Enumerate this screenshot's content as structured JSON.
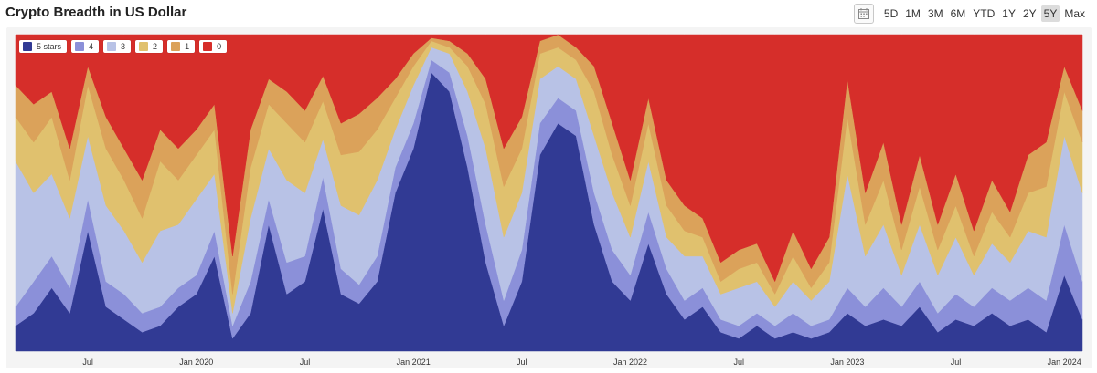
{
  "header": {
    "title": "Crypto Breadth in US Dollar",
    "calendar_icon": "calendar-icon",
    "ranges": [
      "5D",
      "1M",
      "3M",
      "6M",
      "YTD",
      "1Y",
      "2Y",
      "5Y",
      "Max"
    ],
    "active_range": "5Y"
  },
  "chart_data": {
    "type": "area",
    "stacked": true,
    "normalized": true,
    "ylim": [
      0,
      100
    ],
    "grid": false,
    "legend_position": "top-left",
    "x_tick_labels": [
      "Jul",
      "Jan 2020",
      "Jul",
      "Jan 2021",
      "Jul",
      "Jan 2022",
      "Jul",
      "Jan 2023",
      "Jul",
      "Jan 2024"
    ],
    "x_tick_dates": [
      "2019-07",
      "2020-01",
      "2020-07",
      "2021-01",
      "2021-07",
      "2022-01",
      "2022-07",
      "2023-01",
      "2023-07",
      "2024-01"
    ],
    "x": [
      "2019-03",
      "2019-04",
      "2019-05",
      "2019-06",
      "2019-07",
      "2019-08",
      "2019-09",
      "2019-10",
      "2019-11",
      "2019-12",
      "2020-01",
      "2020-02",
      "2020-03",
      "2020-04",
      "2020-05",
      "2020-06",
      "2020-07",
      "2020-08",
      "2020-09",
      "2020-10",
      "2020-11",
      "2020-12",
      "2021-01",
      "2021-02",
      "2021-03",
      "2021-04",
      "2021-05",
      "2021-06",
      "2021-07",
      "2021-08",
      "2021-09",
      "2021-10",
      "2021-11",
      "2021-12",
      "2022-01",
      "2022-02",
      "2022-03",
      "2022-04",
      "2022-05",
      "2022-06",
      "2022-07",
      "2022-08",
      "2022-09",
      "2022-10",
      "2022-11",
      "2022-12",
      "2023-01",
      "2023-02",
      "2023-03",
      "2023-04",
      "2023-05",
      "2023-06",
      "2023-07",
      "2023-08",
      "2023-09",
      "2023-10",
      "2023-11",
      "2023-12",
      "2024-01",
      "2024-02"
    ],
    "series": [
      {
        "name": "5 stars",
        "color": "#313a94",
        "values": [
          8,
          12,
          20,
          12,
          38,
          14,
          10,
          6,
          8,
          14,
          18,
          30,
          4,
          12,
          40,
          18,
          22,
          45,
          18,
          15,
          22,
          50,
          64,
          88,
          82,
          58,
          28,
          8,
          22,
          62,
          72,
          68,
          40,
          22,
          16,
          34,
          18,
          10,
          14,
          6,
          4,
          8,
          4,
          6,
          4,
          6,
          12,
          8,
          10,
          8,
          14,
          6,
          10,
          8,
          12,
          8,
          10,
          6,
          24,
          10
        ]
      },
      {
        "name": "4",
        "color": "#8b90d9",
        "values": [
          6,
          10,
          10,
          8,
          10,
          8,
          8,
          6,
          6,
          6,
          6,
          8,
          4,
          10,
          8,
          10,
          8,
          10,
          8,
          6,
          8,
          8,
          8,
          4,
          6,
          10,
          12,
          8,
          10,
          10,
          8,
          8,
          10,
          10,
          8,
          10,
          8,
          6,
          6,
          4,
          4,
          4,
          4,
          6,
          4,
          4,
          8,
          6,
          10,
          6,
          8,
          6,
          8,
          6,
          8,
          8,
          10,
          10,
          16,
          12
        ]
      },
      {
        "name": "3",
        "color": "#b8c2e6",
        "values": [
          46,
          28,
          26,
          22,
          20,
          24,
          20,
          16,
          24,
          20,
          24,
          18,
          4,
          20,
          16,
          26,
          20,
          12,
          20,
          22,
          24,
          12,
          12,
          4,
          6,
          14,
          24,
          20,
          18,
          14,
          10,
          10,
          18,
          18,
          12,
          16,
          10,
          14,
          10,
          8,
          12,
          10,
          6,
          10,
          8,
          12,
          36,
          16,
          20,
          10,
          18,
          12,
          18,
          10,
          14,
          12,
          18,
          20,
          28,
          28
        ]
      },
      {
        "name": "2",
        "color": "#e0c16e",
        "values": [
          14,
          16,
          18,
          12,
          16,
          18,
          16,
          14,
          22,
          14,
          14,
          14,
          6,
          16,
          14,
          18,
          16,
          12,
          16,
          20,
          16,
          10,
          6,
          2,
          2,
          8,
          14,
          16,
          14,
          8,
          6,
          6,
          14,
          12,
          10,
          12,
          10,
          8,
          6,
          4,
          6,
          6,
          4,
          8,
          4,
          6,
          18,
          10,
          14,
          8,
          12,
          8,
          10,
          6,
          10,
          8,
          12,
          16,
          14,
          16
        ]
      },
      {
        "name": "1",
        "color": "#dba25a",
        "values": [
          10,
          12,
          8,
          10,
          6,
          10,
          10,
          12,
          10,
          10,
          8,
          8,
          12,
          12,
          8,
          10,
          10,
          8,
          10,
          12,
          10,
          6,
          4,
          1,
          2,
          4,
          8,
          12,
          10,
          4,
          4,
          4,
          8,
          10,
          8,
          8,
          8,
          8,
          6,
          6,
          6,
          6,
          4,
          8,
          6,
          8,
          12,
          10,
          12,
          8,
          10,
          8,
          10,
          8,
          10,
          8,
          12,
          14,
          8,
          10
        ]
      },
      {
        "name": "0",
        "color": "#d62e2a",
        "values": [
          16,
          22,
          18,
          36,
          10,
          26,
          36,
          46,
          30,
          36,
          30,
          22,
          70,
          30,
          14,
          18,
          24,
          13,
          28,
          25,
          20,
          14,
          6,
          1,
          2,
          6,
          14,
          36,
          26,
          2,
          0,
          4,
          10,
          28,
          46,
          20,
          46,
          54,
          58,
          72,
          68,
          66,
          78,
          62,
          74,
          64,
          14,
          50,
          34,
          60,
          38,
          60,
          44,
          62,
          46,
          56,
          38,
          34,
          10,
          24
        ]
      }
    ]
  }
}
